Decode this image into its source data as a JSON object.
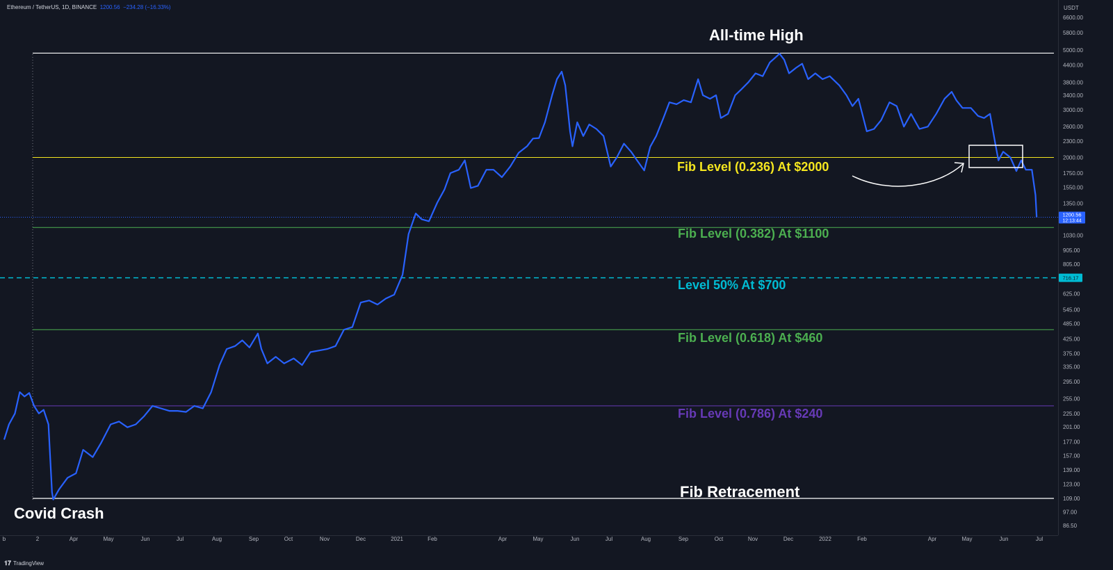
{
  "header": {
    "symbol": "Ethereum / TetherUS, 1D, BINANCE",
    "price": "1200.56",
    "change": "−234.28 (−16.33%)"
  },
  "footer": {
    "brand": "TradingView"
  },
  "colors": {
    "background": "#131722",
    "price_line": "#2962ff",
    "ath": "#ffffff",
    "fib_236": "#f5e61f",
    "fib_382": "#4caf50",
    "fib_50": "#00bcd4",
    "fib_618": "#4caf50",
    "fib_786": "#673ab7",
    "axis_text": "#b2b5be"
  },
  "annotations": {
    "ath": "All-time High",
    "fib_236": "Fib Level (0.236) At $2000",
    "fib_382": "Fib Level (0.382) At $1100",
    "fib_50": "Level 50% At $700",
    "fib_618": "Fib Level (0.618) At $460",
    "fib_786": "Fib Level (0.786) At $240",
    "fib_retracement": "Fib Retracement",
    "covid": "Covid Crash"
  },
  "chart_data": {
    "type": "line",
    "scale": "log",
    "currency_label": "USDT",
    "y_ticks": [
      "6600.00",
      "5800.00",
      "5000.00",
      "4400.00",
      "3800.00",
      "3400.00",
      "3000.00",
      "2600.00",
      "2300.00",
      "2000.00",
      "1750.00",
      "1550.00",
      "1350.00",
      "1030.00",
      "905.00",
      "805.00",
      "625.00",
      "545.00",
      "485.00",
      "425.00",
      "375.00",
      "335.00",
      "295.00",
      "255.00",
      "225.00",
      "201.00",
      "177.00",
      "157.00",
      "139.00",
      "123.00",
      "109.00",
      "97.00",
      "86.50"
    ],
    "x_ticks": [
      "b",
      "2",
      "Apr",
      "May",
      "Jun",
      "Jul",
      "Aug",
      "Sep",
      "Oct",
      "Nov",
      "Dec",
      "2021",
      "Feb",
      "Apr",
      "May",
      "Jun",
      "Jul",
      "Aug",
      "Sep",
      "Oct",
      "Nov",
      "Dec",
      "2022",
      "Feb",
      "Apr",
      "May",
      "Jun",
      "Jul"
    ],
    "price_label": {
      "value": "1200.56",
      "timer": "12:13:44"
    },
    "level_label": "716.17",
    "levels": [
      {
        "name": "All-time High",
        "value": 4870
      },
      {
        "name": "0.236",
        "value": 2000
      },
      {
        "name": "0.382",
        "value": 1100
      },
      {
        "name": "0.5",
        "value": 716.17
      },
      {
        "name": "0.618",
        "value": 460
      },
      {
        "name": "0.786",
        "value": 240
      },
      {
        "name": "Fib Retracement",
        "value": 109
      }
    ],
    "series": [
      {
        "points": [
          [
            "2020-02-01",
            180
          ],
          [
            "2020-02-05",
            205
          ],
          [
            "2020-02-10",
            225
          ],
          [
            "2020-02-14",
            270
          ],
          [
            "2020-02-18",
            260
          ],
          [
            "2020-02-22",
            268
          ],
          [
            "2020-02-26",
            240
          ],
          [
            "2020-03-01",
            225
          ],
          [
            "2020-03-05",
            232
          ],
          [
            "2020-03-09",
            205
          ],
          [
            "2020-03-12",
            115
          ],
          [
            "2020-03-13",
            108
          ],
          [
            "2020-03-18",
            118
          ],
          [
            "2020-03-25",
            130
          ],
          [
            "2020-04-01",
            135
          ],
          [
            "2020-04-07",
            165
          ],
          [
            "2020-04-15",
            155
          ],
          [
            "2020-04-22",
            175
          ],
          [
            "2020-04-30",
            205
          ],
          [
            "2020-05-07",
            210
          ],
          [
            "2020-05-14",
            200
          ],
          [
            "2020-05-21",
            205
          ],
          [
            "2020-05-28",
            220
          ],
          [
            "2020-06-04",
            240
          ],
          [
            "2020-06-11",
            235
          ],
          [
            "2020-06-18",
            230
          ],
          [
            "2020-06-25",
            230
          ],
          [
            "2020-07-02",
            228
          ],
          [
            "2020-07-09",
            240
          ],
          [
            "2020-07-16",
            235
          ],
          [
            "2020-07-23",
            270
          ],
          [
            "2020-07-30",
            340
          ],
          [
            "2020-08-05",
            390
          ],
          [
            "2020-08-12",
            400
          ],
          [
            "2020-08-18",
            420
          ],
          [
            "2020-08-24",
            395
          ],
          [
            "2020-08-31",
            445
          ],
          [
            "2020-09-03",
            390
          ],
          [
            "2020-09-08",
            345
          ],
          [
            "2020-09-15",
            365
          ],
          [
            "2020-09-22",
            345
          ],
          [
            "2020-09-30",
            360
          ],
          [
            "2020-10-07",
            340
          ],
          [
            "2020-10-14",
            380
          ],
          [
            "2020-10-21",
            385
          ],
          [
            "2020-10-28",
            390
          ],
          [
            "2020-11-04",
            400
          ],
          [
            "2020-11-11",
            460
          ],
          [
            "2020-11-18",
            470
          ],
          [
            "2020-11-25",
            580
          ],
          [
            "2020-12-02",
            590
          ],
          [
            "2020-12-09",
            570
          ],
          [
            "2020-12-16",
            600
          ],
          [
            "2020-12-23",
            620
          ],
          [
            "2020-12-30",
            735
          ],
          [
            "2021-01-04",
            1040
          ],
          [
            "2021-01-10",
            1240
          ],
          [
            "2021-01-15",
            1180
          ],
          [
            "2021-01-21",
            1160
          ],
          [
            "2021-01-28",
            1360
          ],
          [
            "2021-02-03",
            1520
          ],
          [
            "2021-02-08",
            1750
          ],
          [
            "2021-02-15",
            1800
          ],
          [
            "2021-02-20",
            1950
          ],
          [
            "2021-02-25",
            1540
          ],
          [
            "2021-03-03",
            1570
          ],
          [
            "2021-03-10",
            1800
          ],
          [
            "2021-03-16",
            1800
          ],
          [
            "2021-03-23",
            1690
          ],
          [
            "2021-03-30",
            1850
          ],
          [
            "2021-04-06",
            2080
          ],
          [
            "2021-04-13",
            2200
          ],
          [
            "2021-04-18",
            2350
          ],
          [
            "2021-04-23",
            2360
          ],
          [
            "2021-04-28",
            2700
          ],
          [
            "2021-05-04",
            3400
          ],
          [
            "2021-05-08",
            3900
          ],
          [
            "2021-05-12",
            4160
          ],
          [
            "2021-05-15",
            3700
          ],
          [
            "2021-05-19",
            2500
          ],
          [
            "2021-05-21",
            2200
          ],
          [
            "2021-05-25",
            2700
          ],
          [
            "2021-05-30",
            2400
          ],
          [
            "2021-06-04",
            2650
          ],
          [
            "2021-06-10",
            2550
          ],
          [
            "2021-06-16",
            2400
          ],
          [
            "2021-06-22",
            1850
          ],
          [
            "2021-06-27",
            2000
          ],
          [
            "2021-07-03",
            2250
          ],
          [
            "2021-07-09",
            2100
          ],
          [
            "2021-07-14",
            1950
          ],
          [
            "2021-07-20",
            1790
          ],
          [
            "2021-07-25",
            2190
          ],
          [
            "2021-07-30",
            2400
          ],
          [
            "2021-08-05",
            2800
          ],
          [
            "2021-08-10",
            3200
          ],
          [
            "2021-08-16",
            3150
          ],
          [
            "2021-08-22",
            3260
          ],
          [
            "2021-08-28",
            3200
          ],
          [
            "2021-09-03",
            3900
          ],
          [
            "2021-09-07",
            3400
          ],
          [
            "2021-09-13",
            3300
          ],
          [
            "2021-09-18",
            3400
          ],
          [
            "2021-09-22",
            2800
          ],
          [
            "2021-09-28",
            2900
          ],
          [
            "2021-10-04",
            3400
          ],
          [
            "2021-10-09",
            3570
          ],
          [
            "2021-10-15",
            3800
          ],
          [
            "2021-10-21",
            4100
          ],
          [
            "2021-10-27",
            4000
          ],
          [
            "2021-11-02",
            4500
          ],
          [
            "2021-11-08",
            4750
          ],
          [
            "2021-11-10",
            4850
          ],
          [
            "2021-11-14",
            4600
          ],
          [
            "2021-11-18",
            4100
          ],
          [
            "2021-11-24",
            4300
          ],
          [
            "2021-11-29",
            4450
          ],
          [
            "2021-12-04",
            3900
          ],
          [
            "2021-12-10",
            4100
          ],
          [
            "2021-12-16",
            3900
          ],
          [
            "2021-12-22",
            4000
          ],
          [
            "2021-12-30",
            3700
          ],
          [
            "2022-01-05",
            3400
          ],
          [
            "2022-01-10",
            3100
          ],
          [
            "2022-01-15",
            3300
          ],
          [
            "2022-01-22",
            2500
          ],
          [
            "2022-01-28",
            2550
          ],
          [
            "2022-02-03",
            2750
          ],
          [
            "2022-02-10",
            3200
          ],
          [
            "2022-02-16",
            3100
          ],
          [
            "2022-02-22",
            2600
          ],
          [
            "2022-02-28",
            2900
          ],
          [
            "2022-03-07",
            2550
          ],
          [
            "2022-03-14",
            2600
          ],
          [
            "2022-03-21",
            2900
          ],
          [
            "2022-03-28",
            3300
          ],
          [
            "2022-04-03",
            3500
          ],
          [
            "2022-04-07",
            3250
          ],
          [
            "2022-04-12",
            3050
          ],
          [
            "2022-04-19",
            3050
          ],
          [
            "2022-04-25",
            2850
          ],
          [
            "2022-04-30",
            2800
          ],
          [
            "2022-05-05",
            2900
          ],
          [
            "2022-05-09",
            2300
          ],
          [
            "2022-05-12",
            1950
          ],
          [
            "2022-05-16",
            2100
          ],
          [
            "2022-05-22",
            2000
          ],
          [
            "2022-05-27",
            1780
          ],
          [
            "2022-05-31",
            1950
          ],
          [
            "2022-06-04",
            1800
          ],
          [
            "2022-06-09",
            1800
          ],
          [
            "2022-06-12",
            1450
          ],
          [
            "2022-06-13",
            1200.56
          ]
        ]
      }
    ]
  }
}
